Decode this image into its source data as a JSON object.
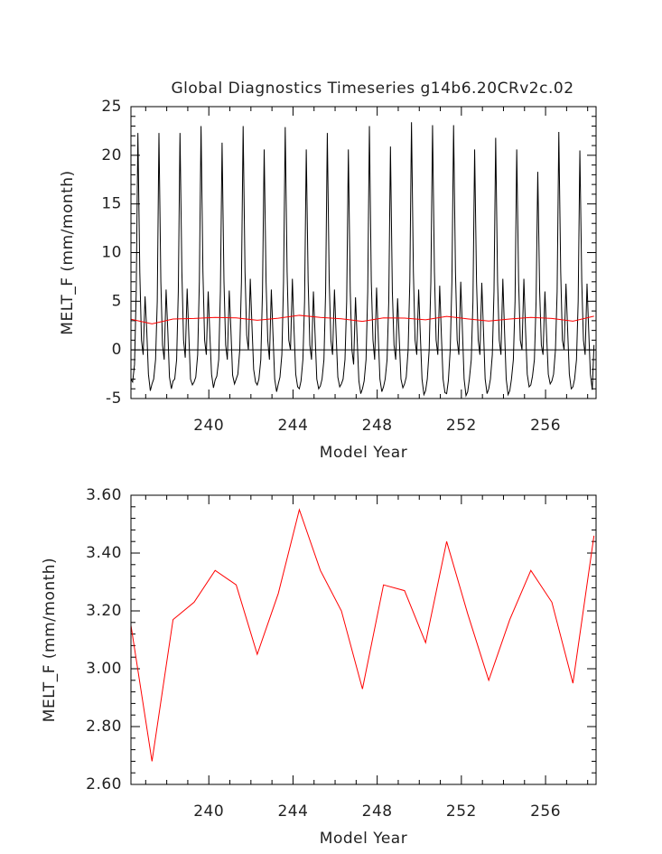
{
  "chart_data": [
    {
      "type": "line",
      "title": "Global Diagnostics Timeseries g14b6.20CRv2c.02",
      "xlabel": "Model Year",
      "ylabel": "MELT_F (mm/month)",
      "xlim": [
        236.3,
        258.4
      ],
      "xticks": [
        240,
        244,
        248,
        252,
        256
      ],
      "x_minor_per_major": 4,
      "ylim": [
        -5,
        25
      ],
      "yticks": [
        -5,
        0,
        5,
        10,
        15,
        20,
        25
      ],
      "y_minor_per_major": 5,
      "zero_line": true,
      "series": [
        {
          "color": "#000000",
          "x": [
            236.3,
            236.38,
            236.47,
            236.55,
            236.63,
            236.72,
            236.8,
            236.88,
            236.97,
            237.05,
            237.13,
            237.22,
            237.3,
            237.38,
            237.47,
            237.55,
            237.63,
            237.72,
            237.8,
            237.88,
            237.97,
            238.05,
            238.13,
            238.22,
            238.3,
            238.38,
            238.47,
            238.55,
            238.63,
            238.72,
            238.8,
            238.88,
            238.97,
            239.05,
            239.13,
            239.22,
            239.3,
            239.38,
            239.47,
            239.55,
            239.63,
            239.72,
            239.8,
            239.88,
            239.97,
            240.05,
            240.13,
            240.22,
            240.3,
            240.38,
            240.47,
            240.55,
            240.63,
            240.72,
            240.8,
            240.88,
            240.97,
            241.05,
            241.13,
            241.22,
            241.3,
            241.38,
            241.47,
            241.55,
            241.63,
            241.72,
            241.8,
            241.88,
            241.97,
            242.05,
            242.13,
            242.22,
            242.3,
            242.38,
            242.47,
            242.55,
            242.63,
            242.72,
            242.8,
            242.88,
            242.97,
            243.05,
            243.13,
            243.22,
            243.3,
            243.38,
            243.47,
            243.55,
            243.63,
            243.72,
            243.8,
            243.88,
            243.97,
            244.05,
            244.13,
            244.22,
            244.3,
            244.38,
            244.47,
            244.55,
            244.63,
            244.72,
            244.8,
            244.88,
            244.97,
            245.05,
            245.13,
            245.22,
            245.3,
            245.38,
            245.47,
            245.55,
            245.63,
            245.72,
            245.8,
            245.88,
            245.97,
            246.05,
            246.13,
            246.22,
            246.3,
            246.38,
            246.47,
            246.55,
            246.63,
            246.72,
            246.8,
            246.88,
            246.97,
            247.05,
            247.13,
            247.22,
            247.3,
            247.38,
            247.47,
            247.55,
            247.63,
            247.72,
            247.8,
            247.88,
            247.97,
            248.05,
            248.13,
            248.22,
            248.3,
            248.38,
            248.47,
            248.55,
            248.63,
            248.72,
            248.8,
            248.88,
            248.97,
            249.05,
            249.13,
            249.22,
            249.3,
            249.38,
            249.47,
            249.55,
            249.63,
            249.72,
            249.8,
            249.88,
            249.97,
            250.05,
            250.13,
            250.22,
            250.3,
            250.38,
            250.47,
            250.55,
            250.63,
            250.72,
            250.8,
            250.88,
            250.97,
            251.05,
            251.13,
            251.22,
            251.3,
            251.38,
            251.47,
            251.55,
            251.63,
            251.72,
            251.8,
            251.88,
            251.97,
            252.05,
            252.13,
            252.22,
            252.3,
            252.38,
            252.47,
            252.55,
            252.63,
            252.72,
            252.8,
            252.88,
            252.97,
            253.05,
            253.13,
            253.22,
            253.3,
            253.38,
            253.47,
            253.55,
            253.63,
            253.72,
            253.8,
            253.88,
            253.97,
            254.05,
            254.13,
            254.22,
            254.3,
            254.38,
            254.47,
            254.55,
            254.63,
            254.72,
            254.8,
            254.88,
            254.97,
            255.05,
            255.13,
            255.22,
            255.3,
            255.38,
            255.47,
            255.55,
            255.63,
            255.72,
            255.8,
            255.88,
            255.97,
            256.05,
            256.13,
            256.22,
            256.3,
            256.38,
            256.47,
            256.55,
            256.63,
            256.72,
            256.8,
            256.88,
            256.97,
            257.05,
            257.13,
            257.22,
            257.3,
            257.38,
            257.47,
            257.55,
            257.63,
            257.72,
            257.8,
            257.88,
            257.97,
            258.05,
            258.13,
            258.22,
            258.3
          ],
          "values": [
            -3.0,
            -3.3,
            -1.5,
            6,
            22.3,
            8,
            1,
            -0.5,
            5.5,
            2,
            -2.5,
            -4.2,
            -3.5,
            -3,
            -1,
            5,
            22.3,
            7,
            0.5,
            -1,
            6.2,
            2,
            -2.8,
            -4.0,
            -3.2,
            -3,
            -1,
            6,
            22.3,
            8,
            1,
            -0.8,
            6.3,
            1.5,
            -3,
            -3.6,
            -3.3,
            -2.8,
            -0.5,
            7,
            23.0,
            8,
            1,
            -0.5,
            6.0,
            1.5,
            -2.5,
            -3.9,
            -3.1,
            -2.7,
            -1,
            6,
            21.3,
            7,
            0.5,
            -1,
            6.1,
            2,
            -2.6,
            -3.5,
            -3.0,
            -2.5,
            0,
            7,
            23.0,
            8,
            1.5,
            0,
            7.3,
            2.5,
            -2,
            -3.3,
            -3.6,
            -3.0,
            -1,
            6,
            20.6,
            7,
            1,
            -1,
            6.2,
            1.5,
            -3,
            -4.3,
            -3.5,
            -2.8,
            -0.5,
            7,
            22.9,
            8,
            1,
            0,
            7.3,
            2,
            -2.5,
            -3.8,
            -4.0,
            -3.2,
            -1,
            5,
            20.6,
            7,
            0.5,
            -1,
            6.0,
            1.5,
            -3,
            -4.0,
            -3.7,
            -3,
            -1,
            6,
            22.3,
            7,
            1,
            -0.5,
            6.2,
            1.5,
            -2.8,
            -3.8,
            -3.5,
            -3,
            -1,
            5,
            20.6,
            6,
            0,
            -1.5,
            5.4,
            1,
            -3.2,
            -4.5,
            -4.0,
            -3.2,
            -1,
            6,
            23.0,
            7,
            1,
            -1,
            6.4,
            1.5,
            -3,
            -4.3,
            -3.8,
            -3,
            -1,
            5,
            20.9,
            6,
            0.5,
            -1,
            5.3,
            1,
            -3,
            -3.9,
            -3.5,
            -2.8,
            0,
            7,
            23.4,
            8,
            1,
            -0.5,
            6.2,
            1.5,
            -3,
            -4.6,
            -4.2,
            -3,
            0,
            7,
            23.1,
            8,
            1,
            -0.5,
            6.6,
            1.5,
            -3,
            -4.4,
            -4.5,
            -3.2,
            0,
            7,
            23.1,
            8,
            1,
            -0.5,
            7.0,
            2,
            -3,
            -4.7,
            -4.3,
            -3,
            -1,
            5,
            20.6,
            7,
            1,
            -0.5,
            6.9,
            2,
            -3,
            -4.5,
            -4.0,
            -3,
            -0.5,
            6,
            21.8,
            7,
            1,
            -0.5,
            7.3,
            2,
            -3,
            -4.6,
            -4.2,
            -3,
            -1,
            5,
            20.6,
            7,
            1,
            0,
            7.3,
            2,
            -2.5,
            -3.8,
            -3.6,
            -2.7,
            -1,
            5,
            18.3,
            6,
            0.5,
            -0.5,
            6.0,
            1.5,
            -2.5,
            -3.5,
            -3.2,
            -2.5,
            0,
            6,
            22.4,
            8,
            1,
            0,
            6.8,
            2,
            -2.5,
            -4.0,
            -3.8,
            -3,
            -1,
            5,
            20.5,
            7,
            1,
            -0.5,
            6.8,
            2,
            -2.5,
            -4.1,
            0.5
          ]
        },
        {
          "color": "#ff0000",
          "x": [
            236.3,
            237.3,
            238.3,
            239.3,
            240.3,
            241.3,
            242.3,
            243.3,
            244.3,
            245.3,
            246.3,
            247.3,
            248.3,
            249.3,
            250.3,
            251.3,
            252.3,
            253.3,
            254.3,
            255.3,
            256.3,
            257.3,
            258.3
          ],
          "values": [
            3.15,
            2.68,
            3.17,
            3.23,
            3.34,
            3.29,
            3.05,
            3.26,
            3.55,
            3.34,
            3.2,
            2.93,
            3.29,
            3.27,
            3.09,
            3.44,
            3.19,
            2.96,
            3.17,
            3.34,
            3.23,
            2.95,
            3.46
          ]
        }
      ]
    },
    {
      "type": "line",
      "xlabel": "Model Year",
      "ylabel": "MELT_F (mm/month)",
      "xlim": [
        236.3,
        258.4
      ],
      "xticks": [
        240,
        244,
        248,
        252,
        256
      ],
      "x_minor_per_major": 4,
      "ylim": [
        2.6,
        3.6
      ],
      "yticks": [
        {
          "value": 2.6,
          "label": "2.60"
        },
        {
          "value": 2.8,
          "label": "2.80"
        },
        {
          "value": 3.0,
          "label": "3.00"
        },
        {
          "value": 3.2,
          "label": "3.20"
        },
        {
          "value": 3.4,
          "label": "3.40"
        },
        {
          "value": 3.6,
          "label": "3.60"
        }
      ],
      "y_minor_per_major": 5,
      "series": [
        {
          "color": "#ff0000",
          "x": [
            236.3,
            237.3,
            238.3,
            239.3,
            240.3,
            241.3,
            242.3,
            243.3,
            244.3,
            245.3,
            246.3,
            247.3,
            248.3,
            249.3,
            250.3,
            251.3,
            252.3,
            253.3,
            254.3,
            255.3,
            256.3,
            257.3,
            258.3
          ],
          "values": [
            3.15,
            2.68,
            3.17,
            3.23,
            3.34,
            3.29,
            3.05,
            3.26,
            3.55,
            3.34,
            3.2,
            2.93,
            3.29,
            3.27,
            3.09,
            3.44,
            3.19,
            2.96,
            3.17,
            3.34,
            3.23,
            2.95,
            3.46
          ]
        }
      ]
    }
  ]
}
